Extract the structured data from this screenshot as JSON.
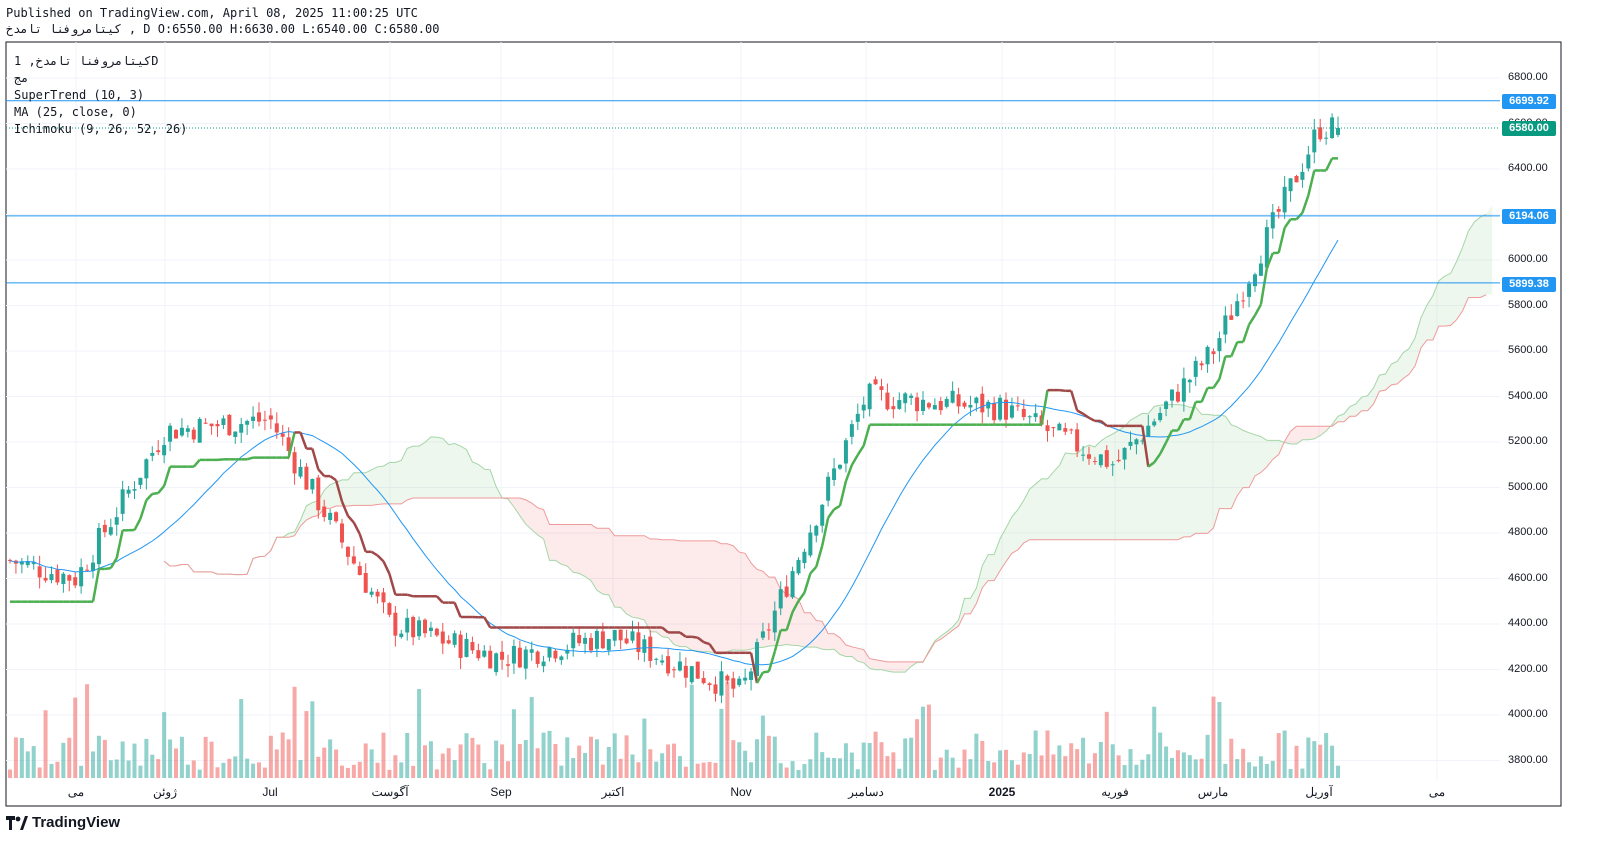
{
  "header": {
    "published": "Published on TradingView.com, April 08, 2025 11:00:25 UTC",
    "ohlc": "کیتامروفنا تامدخ , D O:6550.00 H:6630.00 L:6540.00 C:6580.00"
  },
  "legend": {
    "symbol": "کیتامروفنا تامدخ, 1D",
    "exchange": "مج",
    "supertrend": "SuperTrend (10, 3)",
    "ma": "MA (25, close, 0)",
    "ichimoku": "Ichimoku (9, 26, 52, 26)"
  },
  "price_labels": {
    "level_high": "6699.92",
    "last": "6580.00",
    "level_mid": "6194.06",
    "level_low": "5899.38"
  },
  "y_ticks": [
    "6800.00",
    "6600.00",
    "6400.00",
    "6200.00",
    "6000.00",
    "5800.00",
    "5600.00",
    "5400.00",
    "5200.00",
    "5000.00",
    "4800.00",
    "4600.00",
    "4400.00",
    "4200.00",
    "4000.00",
    "3800.00"
  ],
  "x_ticks": [
    "می",
    "ژوئن",
    "Jul",
    "آگوست",
    "Sep",
    "اکتبر",
    "Nov",
    "دسامبر",
    "2025",
    "فوریه",
    "مارس",
    "آوریل",
    "می"
  ],
  "brand": "TradingView",
  "colors": {
    "up": "#26a69a",
    "down": "#ef5350",
    "hline": "#2196f3",
    "last": "#089981",
    "st_up": "#4caf50",
    "st_down": "#a04848",
    "ma": "#2196f3"
  },
  "chart_data": {
    "type": "candlestick",
    "timeframe": "1D",
    "y_range": [
      3750,
      6880
    ],
    "last_bar": {
      "open": 6550,
      "high": 6630,
      "low": 6540,
      "close": 6580
    },
    "horizontal_levels": [
      6699.92,
      6194.06,
      5899.38
    ],
    "last_price": 6580,
    "price_path_keypoints": [
      {
        "x_label": "می",
        "close": 4600
      },
      {
        "x_label": "ژوئن",
        "close": 5250
      },
      {
        "x_label": "Jul",
        "close": 5300
      },
      {
        "x_label": "آگوست",
        "close": 4400
      },
      {
        "x_label": "Sep",
        "close": 4250
      },
      {
        "x_label": "اکتبر",
        "close": 4350
      },
      {
        "x_label": "Nov",
        "close": 4100
      },
      {
        "x_label": "دسامبر",
        "close": 5400
      },
      {
        "x_label": "2025",
        "close": 5350
      },
      {
        "x_label": "فوریه",
        "close": 5100
      },
      {
        "x_label": "مارس",
        "close": 5600
      },
      {
        "x_label": "آوریل",
        "close": 6580
      }
    ]
  }
}
